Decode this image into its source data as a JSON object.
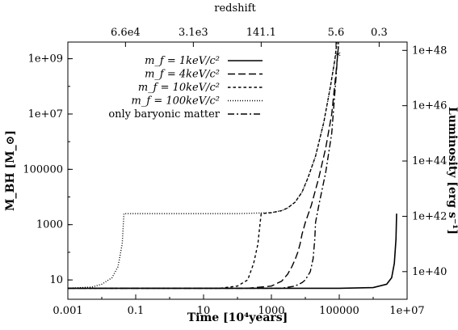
{
  "chart_data": {
    "type": "line",
    "title": "",
    "top_axis": {
      "label": "redshift",
      "tick_labels": [
        {
          "label": "6.6e4",
          "at_time": 0.05
        },
        {
          "label": "3.1e3",
          "at_time": 5
        },
        {
          "label": "141.1",
          "at_time": 500
        },
        {
          "label": "5.6",
          "at_time": 80000
        },
        {
          "label": "0.3",
          "at_time": 1500000
        }
      ]
    },
    "x_axis": {
      "label": "Time [10⁴years]",
      "scale": "log",
      "range": [
        0.001,
        10000000
      ],
      "ticks": [
        {
          "value": 0.001,
          "label": "0.001"
        },
        {
          "value": 0.1,
          "label": "0.1"
        },
        {
          "value": 10,
          "label": "10"
        },
        {
          "value": 1000,
          "label": "1000"
        },
        {
          "value": 100000,
          "label": "100000"
        },
        {
          "value": 10000000,
          "label": "1e+07"
        }
      ]
    },
    "y_axis_left": {
      "label": "M_BH [M_⊙]",
      "scale": "log",
      "range": [
        2,
        4000000000
      ],
      "ticks": [
        {
          "value": 10,
          "label": "10"
        },
        {
          "value": 1000,
          "label": "1000"
        },
        {
          "value": 100000,
          "label": "100000"
        },
        {
          "value": 10000000,
          "label": "1e+07"
        },
        {
          "value": 1000000000,
          "label": "1e+09"
        }
      ]
    },
    "y_axis_right": {
      "label": "Luminosity [erg s⁻¹]",
      "ticks": [
        {
          "label": "1e+40",
          "at_mbh": 20
        },
        {
          "label": "1e+42",
          "at_mbh": 2000
        },
        {
          "label": "1e+44",
          "at_mbh": 200000
        },
        {
          "label": "1e+46",
          "at_mbh": 20000000
        },
        {
          "label": "1e+48",
          "at_mbh": 2000000000
        }
      ]
    },
    "legend_position": "top-center",
    "series": [
      {
        "name": "m_f = 1keV/c²",
        "dash": "solid",
        "points": [
          [
            0.001,
            5
          ],
          [
            100000,
            5
          ],
          [
            1000000,
            5.3
          ],
          [
            2500000,
            7
          ],
          [
            3500000,
            12
          ],
          [
            4200000,
            40
          ],
          [
            4700000,
            300
          ],
          [
            4900000,
            2500
          ]
        ]
      },
      {
        "name": "m_f = 4keV/c²",
        "dash": "long",
        "points": [
          [
            0.001,
            5
          ],
          [
            200,
            5
          ],
          [
            1000,
            6
          ],
          [
            2000,
            9
          ],
          [
            3000,
            16
          ],
          [
            4000,
            30
          ],
          [
            5000,
            55
          ],
          [
            6000,
            100
          ],
          [
            7000,
            200
          ],
          [
            8000,
            450
          ],
          [
            10000,
            1200
          ],
          [
            15000,
            5000
          ],
          [
            25000,
            50000
          ],
          [
            40000,
            600000
          ],
          [
            60000,
            10000000
          ],
          [
            80000,
            300000000
          ],
          [
            95000,
            3000000000
          ]
        ]
      },
      {
        "name": "m_f = 10keV/c²",
        "dash": "short",
        "points": [
          [
            0.001,
            5
          ],
          [
            30,
            5
          ],
          [
            100,
            6
          ],
          [
            200,
            10
          ],
          [
            300,
            40
          ],
          [
            400,
            200
          ],
          [
            450,
            800
          ],
          [
            500,
            2500
          ],
          [
            1000,
            2700
          ],
          [
            2000,
            3200
          ],
          [
            3000,
            4000
          ],
          [
            5000,
            6500
          ],
          [
            8000,
            15000
          ],
          [
            12000,
            50000
          ],
          [
            20000,
            300000
          ],
          [
            35000,
            5000000
          ],
          [
            55000,
            100000000
          ],
          [
            75000,
            1000000000
          ],
          [
            85000,
            4000000000
          ]
        ]
      },
      {
        "name": "m_f = 100keV/c²",
        "dash": "dotted",
        "points": [
          [
            0.001,
            5
          ],
          [
            0.005,
            5.5
          ],
          [
            0.01,
            7
          ],
          [
            0.02,
            12
          ],
          [
            0.03,
            30
          ],
          [
            0.04,
            200
          ],
          [
            0.045,
            2500
          ],
          [
            1,
            2500
          ],
          [
            100,
            2500
          ],
          [
            1000,
            2700
          ],
          [
            2000,
            3200
          ],
          [
            3000,
            4000
          ],
          [
            5000,
            6500
          ],
          [
            8000,
            15000
          ],
          [
            12000,
            50000
          ],
          [
            20000,
            300000
          ],
          [
            35000,
            5000000
          ],
          [
            55000,
            100000000
          ],
          [
            75000,
            1000000000
          ],
          [
            85000,
            4000000000
          ]
        ]
      },
      {
        "name": "only baryonic matter",
        "dash": "dashdot",
        "points": [
          [
            0.001,
            5
          ],
          [
            2000,
            5
          ],
          [
            5000,
            6
          ],
          [
            8000,
            8
          ],
          [
            10000,
            10
          ],
          [
            14000,
            20
          ],
          [
            17000,
            60
          ],
          [
            19000,
            300
          ],
          [
            20000,
            1200
          ],
          [
            25000,
            5000
          ],
          [
            40000,
            80000
          ],
          [
            60000,
            2000000
          ],
          [
            80000,
            200000000
          ],
          [
            95000,
            4000000000
          ]
        ]
      }
    ],
    "annotations": [
      {
        "marker": "*",
        "x": 90000,
        "y": 1300000000
      }
    ]
  }
}
